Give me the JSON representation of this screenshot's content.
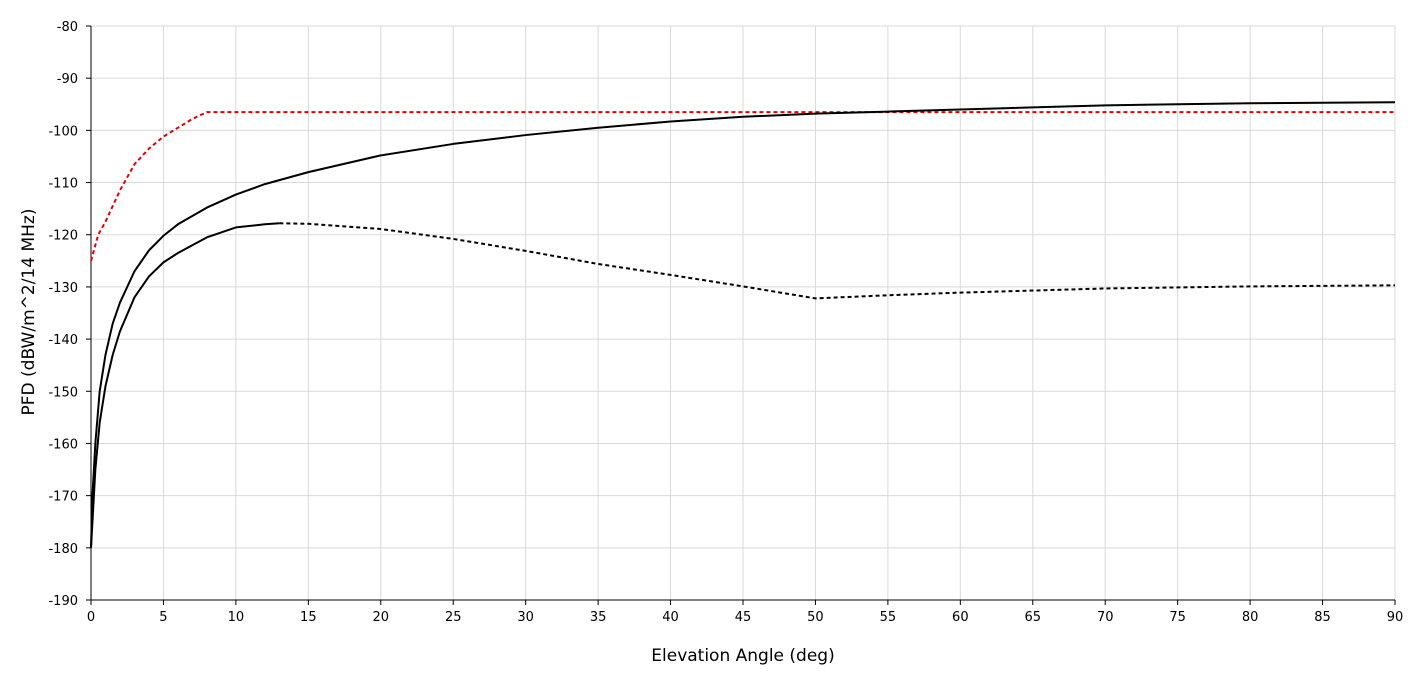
{
  "chart_data": {
    "type": "line",
    "title": "",
    "xlabel": "Elevation Angle (deg)",
    "ylabel": "PFD (dBW/m^2/14 MHz)",
    "xlim": [
      0,
      90
    ],
    "ylim": [
      -190,
      -80
    ],
    "x_ticks": [
      0,
      5,
      10,
      15,
      20,
      25,
      30,
      35,
      40,
      45,
      50,
      55,
      60,
      65,
      70,
      75,
      80,
      85,
      90
    ],
    "y_ticks": [
      -80,
      -90,
      -100,
      -110,
      -120,
      -130,
      -140,
      -150,
      -160,
      -170,
      -180,
      -190
    ],
    "grid": true,
    "legend": "none",
    "series": [
      {
        "color": "#e00000",
        "style": "dashed",
        "x": [
          0,
          0.5,
          1,
          2,
          3,
          4,
          5,
          6,
          7,
          8,
          20,
          40,
          60,
          80,
          90
        ],
        "y": [
          -125,
          -120,
          -117.5,
          -111.5,
          -106.5,
          -103.5,
          -101.2,
          -99.5,
          -97.8,
          -96.5,
          -96.5,
          -96.5,
          -96.5,
          -96.5,
          -96.5
        ]
      },
      {
        "color": "#000000",
        "style": "solid",
        "x": [
          0,
          0.1,
          0.3,
          0.6,
          1,
          1.5,
          2,
          3,
          4,
          5,
          6,
          8,
          10,
          12,
          15,
          20,
          25,
          30,
          35,
          40,
          45,
          50,
          55,
          60,
          65,
          70,
          75,
          80,
          85,
          90
        ],
        "y": [
          -180,
          -170,
          -160,
          -150,
          -143,
          -137,
          -133,
          -127,
          -123,
          -120.2,
          -118,
          -114.8,
          -112.3,
          -110.3,
          -108,
          -104.8,
          -102.6,
          -100.9,
          -99.5,
          -98.3,
          -97.4,
          -96.8,
          -96.4,
          -96,
          -95.6,
          -95.2,
          -95,
          -94.8,
          -94.7,
          -94.6
        ]
      },
      {
        "color": "#000000",
        "style": "solid-then-dashed",
        "dash_from_x": 13,
        "x": [
          0,
          0.1,
          0.3,
          0.6,
          1,
          1.5,
          2,
          3,
          4,
          5,
          6,
          8,
          10,
          12,
          13,
          15,
          20,
          25,
          30,
          35,
          40,
          45,
          50,
          55,
          60,
          65,
          70,
          75,
          80,
          85,
          90
        ],
        "y": [
          -180,
          -175,
          -165,
          -156,
          -149,
          -143,
          -138.5,
          -132,
          -128,
          -125.3,
          -123.5,
          -120.5,
          -118.6,
          -118,
          -117.8,
          -117.9,
          -118.9,
          -120.8,
          -123.1,
          -125.6,
          -127.7,
          -129.9,
          -132.2,
          -131.6,
          -131.1,
          -130.7,
          -130.3,
          -130.1,
          -129.9,
          -129.8,
          -129.7
        ]
      }
    ]
  }
}
